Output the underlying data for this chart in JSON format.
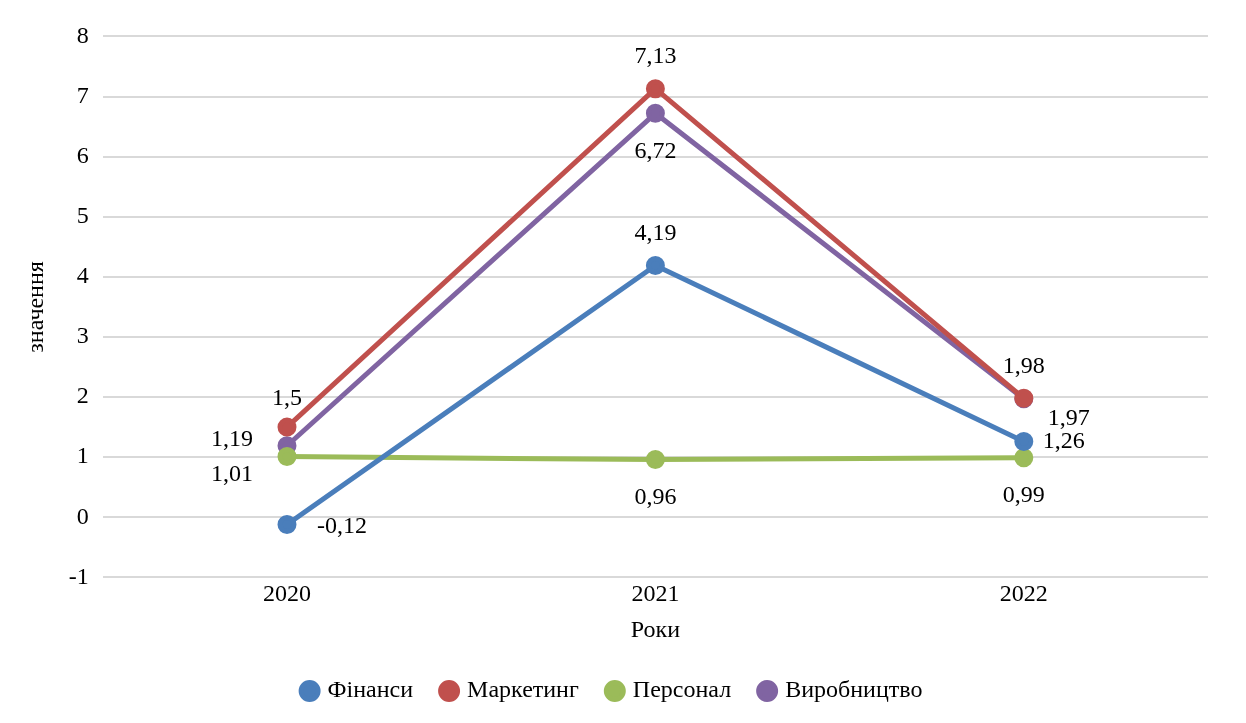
{
  "chart_data": {
    "type": "line",
    "xlabel": "Роки",
    "ylabel": "значення",
    "categories": [
      "2020",
      "2021",
      "2022"
    ],
    "series": [
      {
        "name": "Фінанси",
        "color": "#4a7ebb",
        "values": [
          -0.12,
          4.19,
          1.26
        ],
        "value_labels": [
          "-0,12",
          "4,19",
          "1,26"
        ]
      },
      {
        "name": "Маркетинг",
        "color": "#c0504d",
        "values": [
          1.5,
          7.13,
          1.98
        ],
        "value_labels": [
          "1,5",
          "7,13",
          "1,98"
        ]
      },
      {
        "name": "Персонал",
        "color": "#9bbb59",
        "values": [
          1.01,
          0.96,
          0.99
        ],
        "value_labels": [
          "1,01",
          "0,96",
          "0,99"
        ]
      },
      {
        "name": "Виробництво",
        "color": "#8064a2",
        "values": [
          1.19,
          6.72,
          1.97
        ],
        "value_labels": [
          "1,19",
          "6,72",
          "1,97"
        ]
      }
    ],
    "ylim": [
      -1,
      8
    ],
    "yticks": [
      -1,
      0,
      1,
      2,
      3,
      4,
      5,
      6,
      7,
      8
    ],
    "grid": "y",
    "legend": "bottom",
    "marker": "circle",
    "line_style": "solid"
  }
}
